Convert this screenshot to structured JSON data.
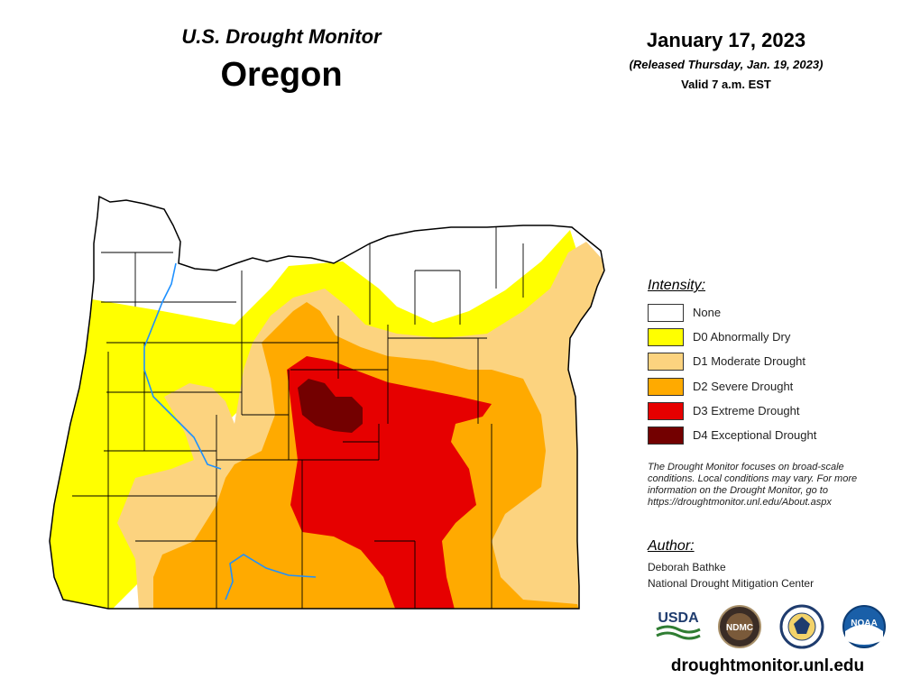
{
  "header": {
    "subtitle": "U.S. Drought Monitor",
    "state": "Oregon",
    "date": "January 17, 2023",
    "released": "(Released Thursday, Jan. 19, 2023)",
    "valid": "Valid 7 a.m. EST"
  },
  "legend": {
    "title": "Intensity:",
    "items": [
      {
        "label": "None",
        "color": "#ffffff"
      },
      {
        "label": "D0 Abnormally Dry",
        "color": "#ffff00"
      },
      {
        "label": "D1 Moderate Drought",
        "color": "#fcd37f"
      },
      {
        "label": "D2 Severe Drought",
        "color": "#ffaa00"
      },
      {
        "label": "D3 Extreme Drought",
        "color": "#e60000"
      },
      {
        "label": "D4 Exceptional Drought",
        "color": "#730000"
      }
    ]
  },
  "disclaimer": "The Drought Monitor focuses on broad-scale conditions. Local conditions may vary. For more information on the Drought Monitor, go to https://droughtmonitor.unl.edu/About.aspx",
  "author": {
    "title": "Author:",
    "name": "Deborah Bathke",
    "org": "National Drought Mitigation Center"
  },
  "logos": {
    "usda": "USDA",
    "ndmc": "NDMC",
    "noaa": "NOAA"
  },
  "url": "droughtmonitor.unl.edu"
}
